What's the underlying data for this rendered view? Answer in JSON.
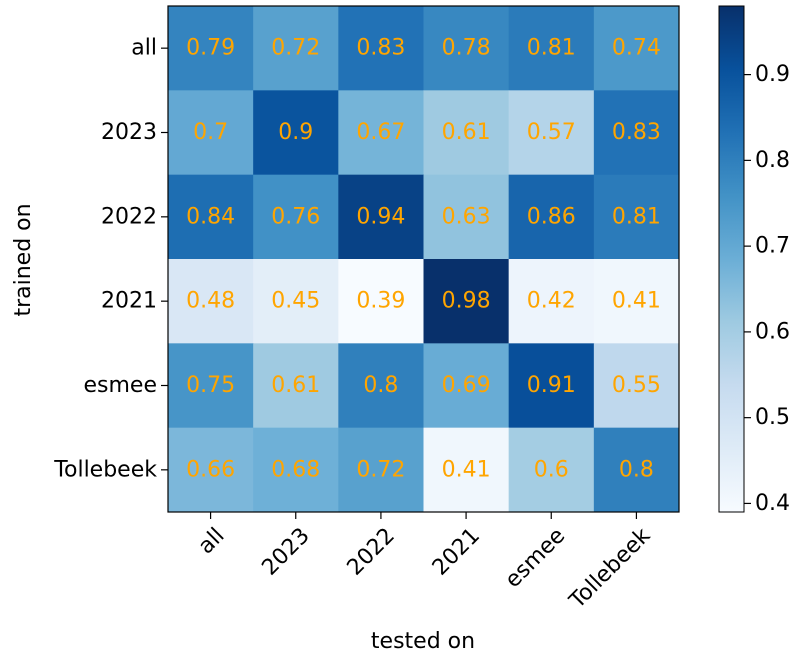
{
  "chart_data": {
    "type": "heatmap",
    "title": "",
    "xlabel": "tested on",
    "ylabel": "trained on",
    "x_categories": [
      "all",
      "2023",
      "2022",
      "2021",
      "esmee",
      "Tollebeek"
    ],
    "y_categories": [
      "all",
      "2023",
      "2022",
      "2021",
      "esmee",
      "Tollebeek"
    ],
    "values": [
      [
        0.79,
        0.72,
        0.83,
        0.78,
        0.81,
        0.74
      ],
      [
        0.7,
        0.9,
        0.67,
        0.61,
        0.57,
        0.83
      ],
      [
        0.84,
        0.76,
        0.94,
        0.63,
        0.86,
        0.81
      ],
      [
        0.48,
        0.45,
        0.39,
        0.98,
        0.42,
        0.41
      ],
      [
        0.75,
        0.61,
        0.8,
        0.69,
        0.91,
        0.55
      ],
      [
        0.66,
        0.68,
        0.72,
        0.41,
        0.6,
        0.8
      ]
    ],
    "colorbar": {
      "min": 0.39,
      "max": 0.98,
      "ticks": [
        "0.4",
        "0.5",
        "0.6",
        "0.7",
        "0.8",
        "0.9"
      ],
      "colormap": "Blues"
    },
    "annotation_color": "#ffa500",
    "grid": false,
    "legend": "none"
  }
}
